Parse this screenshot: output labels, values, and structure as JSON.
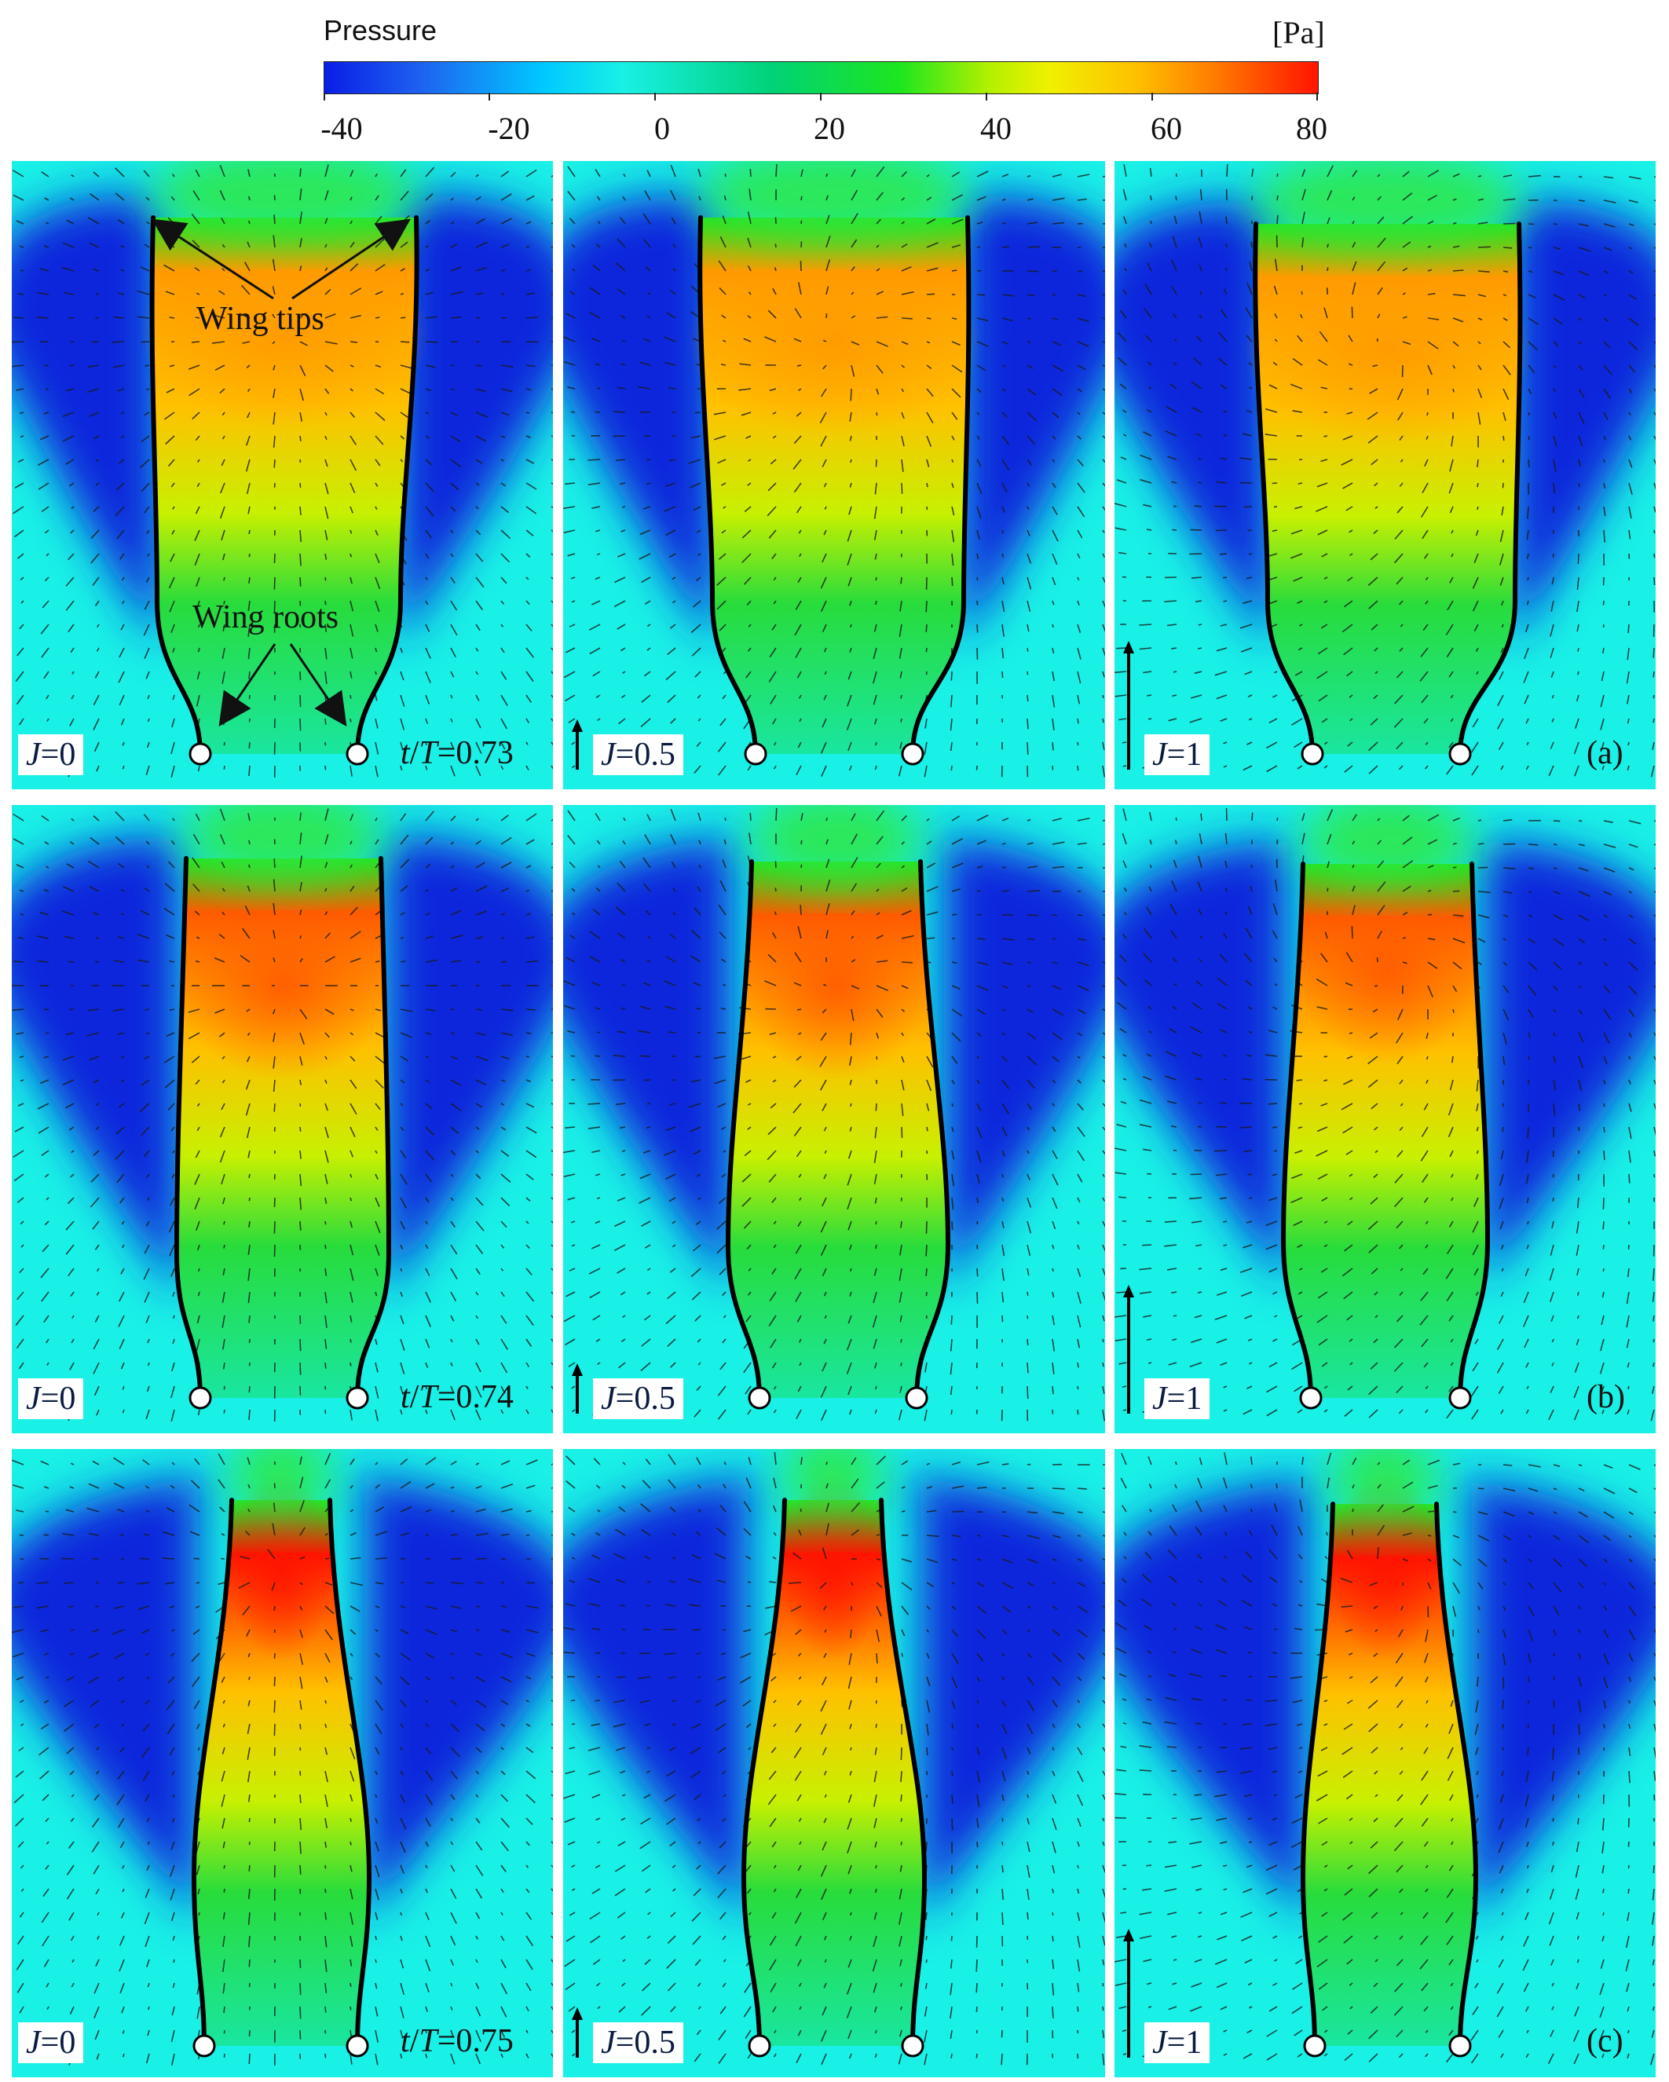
{
  "colorbar": {
    "title": "Pressure",
    "unit": "[Pa]",
    "ticks": [
      "-40",
      "-20",
      "0",
      "20",
      "40",
      "60",
      "80"
    ],
    "range": [
      -40,
      80
    ]
  },
  "annotations": {
    "wing_tips": "Wing tips",
    "wing_roots": "Wing roots"
  },
  "rows": [
    {
      "label": "(a)",
      "time": "0.73",
      "time_prefix_t": "t",
      "time_prefix_slash": "/",
      "time_prefix_T": "T",
      "time_prefix_eq": "="
    },
    {
      "label": "(b)",
      "time": "0.74",
      "time_prefix_t": "t",
      "time_prefix_slash": "/",
      "time_prefix_T": "T",
      "time_prefix_eq": "="
    },
    {
      "label": "(c)",
      "time": "0.75",
      "time_prefix_t": "t",
      "time_prefix_slash": "/",
      "time_prefix_T": "T",
      "time_prefix_eq": "="
    }
  ],
  "columns": [
    {
      "J_symbol": "J",
      "J_value": "=0"
    },
    {
      "J_symbol": "J",
      "J_value": "=0.5"
    },
    {
      "J_symbol": "J",
      "J_value": "=1"
    }
  ],
  "colors": {
    "background": "#19f0e6",
    "low": "#0a1ee6",
    "mid": "#1ee61e",
    "high": "#ff1400"
  }
}
